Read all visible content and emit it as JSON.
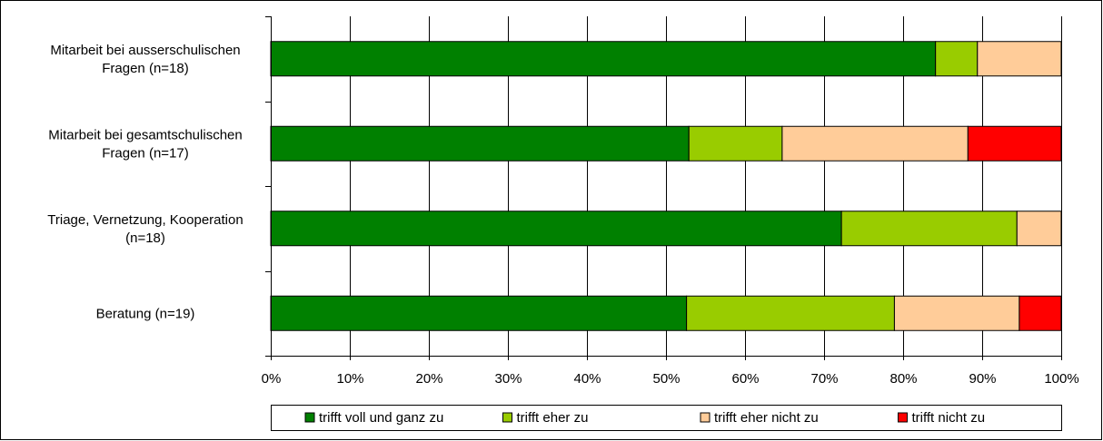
{
  "chart_data": {
    "type": "bar",
    "orientation": "horizontal",
    "stacked": "percent",
    "categories": [
      [
        "Mitarbeit bei ausserschulischen",
        "Fragen (n=18)"
      ],
      [
        "Mitarbeit bei gesamtschulischen",
        "Fragen (n=17)"
      ],
      [
        "Triage, Vernetzung, Kooperation",
        "(n=18)"
      ],
      [
        "Beratung (n=19)"
      ]
    ],
    "series": [
      {
        "name": "trifft voll und ganz zu",
        "color": "#008000",
        "values": [
          84.1,
          52.9,
          72.2,
          52.6
        ]
      },
      {
        "name": "trifft eher zu",
        "color": "#99CC00",
        "values": [
          5.3,
          11.8,
          22.2,
          26.3
        ]
      },
      {
        "name": "trifft eher nicht zu",
        "color": "#FFCC99",
        "values": [
          10.6,
          23.5,
          5.6,
          15.8
        ]
      },
      {
        "name": "trifft nicht zu",
        "color": "#FF0000",
        "values": [
          0,
          11.8,
          0,
          5.3
        ]
      }
    ],
    "xlim": [
      0,
      100
    ],
    "x_ticks": [
      "0%",
      "10%",
      "20%",
      "30%",
      "40%",
      "50%",
      "60%",
      "70%",
      "80%",
      "90%",
      "100%"
    ],
    "grid": true,
    "legend_position": "bottom"
  }
}
